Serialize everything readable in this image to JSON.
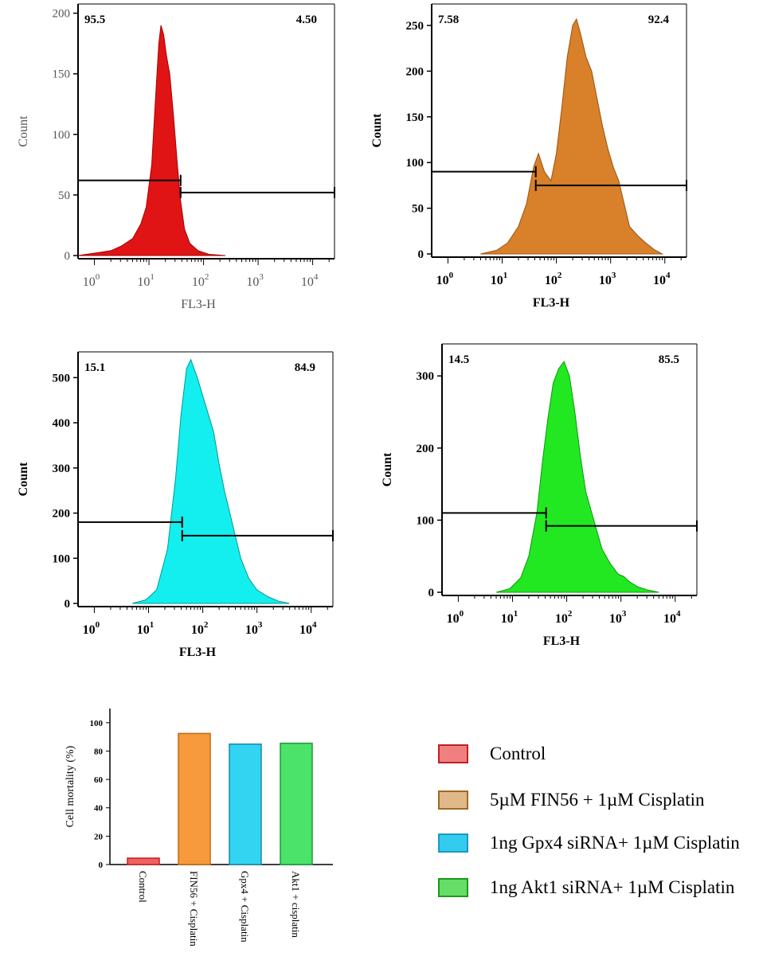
{
  "histograms": [
    {
      "id": "red",
      "color": "#e01414",
      "edge": "#a80000",
      "ylabel": "Count",
      "xlabel": "FL3-H",
      "yticks": [
        0,
        50,
        100,
        150,
        200
      ],
      "ymax": 205,
      "xticks": [
        "10^0",
        "10^1",
        "10^2",
        "10^3",
        "10^4"
      ],
      "xrange_log": [
        -0.3,
        4.4
      ],
      "gate_left_label": "95.5",
      "gate_right_label": "4.50",
      "gate_split_log": 1.58,
      "gate_left_y": 62,
      "gate_right_y": 52,
      "peak_log": 1.22,
      "peak_count": 190,
      "profile": [
        [
          -0.3,
          0
        ],
        [
          0,
          2
        ],
        [
          0.3,
          4
        ],
        [
          0.5,
          8
        ],
        [
          0.7,
          14
        ],
        [
          0.85,
          26
        ],
        [
          0.95,
          40
        ],
        [
          1.05,
          75
        ],
        [
          1.12,
          130
        ],
        [
          1.18,
          175
        ],
        [
          1.22,
          190
        ],
        [
          1.27,
          182
        ],
        [
          1.32,
          165
        ],
        [
          1.38,
          150
        ],
        [
          1.45,
          115
        ],
        [
          1.52,
          75
        ],
        [
          1.58,
          45
        ],
        [
          1.65,
          22
        ],
        [
          1.75,
          10
        ],
        [
          1.9,
          4
        ],
        [
          2.1,
          1
        ],
        [
          2.4,
          0
        ]
      ]
    },
    {
      "id": "orange",
      "color": "#d8802a",
      "edge": "#9a5410",
      "ylabel": "Count",
      "xlabel": "FL3-H",
      "yticks": [
        0,
        50,
        100,
        150,
        200,
        250
      ],
      "ymax": 270,
      "xticks": [
        "10^0",
        "10^1",
        "10^2",
        "10^3",
        "10^4"
      ],
      "xrange_log": [
        -0.3,
        4.4
      ],
      "gate_left_label": "7.58",
      "gate_right_label": "92.4",
      "gate_split_log": 1.62,
      "gate_left_y": 90,
      "gate_right_y": 75,
      "peak_log": 2.35,
      "peak_count": 257,
      "profile": [
        [
          0.6,
          0
        ],
        [
          0.9,
          4
        ],
        [
          1.1,
          12
        ],
        [
          1.3,
          30
        ],
        [
          1.45,
          55
        ],
        [
          1.58,
          95
        ],
        [
          1.67,
          110
        ],
        [
          1.78,
          90
        ],
        [
          1.9,
          80
        ],
        [
          2.0,
          110
        ],
        [
          2.1,
          160
        ],
        [
          2.2,
          215
        ],
        [
          2.3,
          250
        ],
        [
          2.37,
          257
        ],
        [
          2.45,
          240
        ],
        [
          2.55,
          215
        ],
        [
          2.65,
          200
        ],
        [
          2.75,
          170
        ],
        [
          2.85,
          140
        ],
        [
          2.95,
          115
        ],
        [
          3.05,
          95
        ],
        [
          3.15,
          80
        ],
        [
          3.25,
          55
        ],
        [
          3.35,
          30
        ],
        [
          3.5,
          20
        ],
        [
          3.65,
          12
        ],
        [
          3.8,
          5
        ],
        [
          3.95,
          0
        ]
      ]
    },
    {
      "id": "cyan",
      "color": "#12efee",
      "edge": "#009a9a",
      "ylabel": "Count",
      "xlabel": "FL3-H",
      "yticks": [
        0,
        100,
        200,
        300,
        400,
        500
      ],
      "ymax": 550,
      "xticks": [
        "10^0",
        "10^1",
        "10^2",
        "10^3",
        "10^4"
      ],
      "xrange_log": [
        -0.3,
        4.4
      ],
      "gate_left_label": "15.1",
      "gate_right_label": "84.9",
      "gate_split_log": 1.62,
      "gate_left_y": 180,
      "gate_right_y": 150,
      "peak_log": 1.78,
      "peak_count": 540,
      "profile": [
        [
          0.7,
          0
        ],
        [
          0.95,
          8
        ],
        [
          1.15,
          30
        ],
        [
          1.35,
          120
        ],
        [
          1.5,
          280
        ],
        [
          1.6,
          420
        ],
        [
          1.7,
          520
        ],
        [
          1.78,
          540
        ],
        [
          1.9,
          500
        ],
        [
          2.0,
          460
        ],
        [
          2.1,
          420
        ],
        [
          2.2,
          380
        ],
        [
          2.3,
          310
        ],
        [
          2.4,
          250
        ],
        [
          2.5,
          200
        ],
        [
          2.6,
          150
        ],
        [
          2.7,
          100
        ],
        [
          2.85,
          55
        ],
        [
          3.0,
          30
        ],
        [
          3.2,
          15
        ],
        [
          3.4,
          5
        ],
        [
          3.6,
          0
        ]
      ]
    },
    {
      "id": "green",
      "color": "#22e822",
      "edge": "#0a9a0a",
      "ylabel": "Count",
      "xlabel": "FL3-H",
      "yticks": [
        0,
        100,
        200,
        300
      ],
      "ymax": 340,
      "xticks": [
        "10^0",
        "10^1",
        "10^2",
        "10^3",
        "10^4"
      ],
      "xrange_log": [
        -0.3,
        4.4
      ],
      "gate_left_label": "14.5",
      "gate_right_label": "85.5",
      "gate_split_log": 1.62,
      "gate_left_y": 110,
      "gate_right_y": 92,
      "peak_log": 1.95,
      "peak_count": 320,
      "profile": [
        [
          0.7,
          0
        ],
        [
          0.95,
          5
        ],
        [
          1.15,
          20
        ],
        [
          1.3,
          50
        ],
        [
          1.45,
          110
        ],
        [
          1.55,
          180
        ],
        [
          1.65,
          240
        ],
        [
          1.75,
          290
        ],
        [
          1.85,
          310
        ],
        [
          1.95,
          320
        ],
        [
          2.05,
          300
        ],
        [
          2.15,
          250
        ],
        [
          2.25,
          190
        ],
        [
          2.35,
          140
        ],
        [
          2.5,
          100
        ],
        [
          2.65,
          60
        ],
        [
          2.8,
          40
        ],
        [
          2.95,
          25
        ],
        [
          3.05,
          22
        ],
        [
          3.15,
          15
        ],
        [
          3.3,
          8
        ],
        [
          3.5,
          3
        ],
        [
          3.7,
          0
        ]
      ]
    }
  ],
  "chart_data": {
    "type": "bar",
    "categories": [
      "Control",
      "FIN56 + Cisplatin",
      "Gpx4 + Cisplatin",
      "Akt1 + cisplatin"
    ],
    "values": [
      4.5,
      92.4,
      84.9,
      85.5
    ],
    "colors": [
      "#f26060",
      "#f79a3e",
      "#33d3f2",
      "#4be36a"
    ],
    "ylabel": "Cell mortality (%)",
    "yticks": [
      0,
      20,
      40,
      60,
      80,
      100
    ],
    "ylim": [
      0,
      110
    ]
  },
  "legend": [
    {
      "label": "Control",
      "color": "#f08080"
    },
    {
      "label": "5µM FIN56 + 1µM Cisplatin",
      "color": "#e0b88a"
    },
    {
      "label": "1ng Gpx4 siRNA+ 1µM Cisplatin",
      "color": "#33ccee"
    },
    {
      "label": " 1ng Akt1 siRNA+ 1µM Cisplatin",
      "color": "#66dd66"
    }
  ]
}
